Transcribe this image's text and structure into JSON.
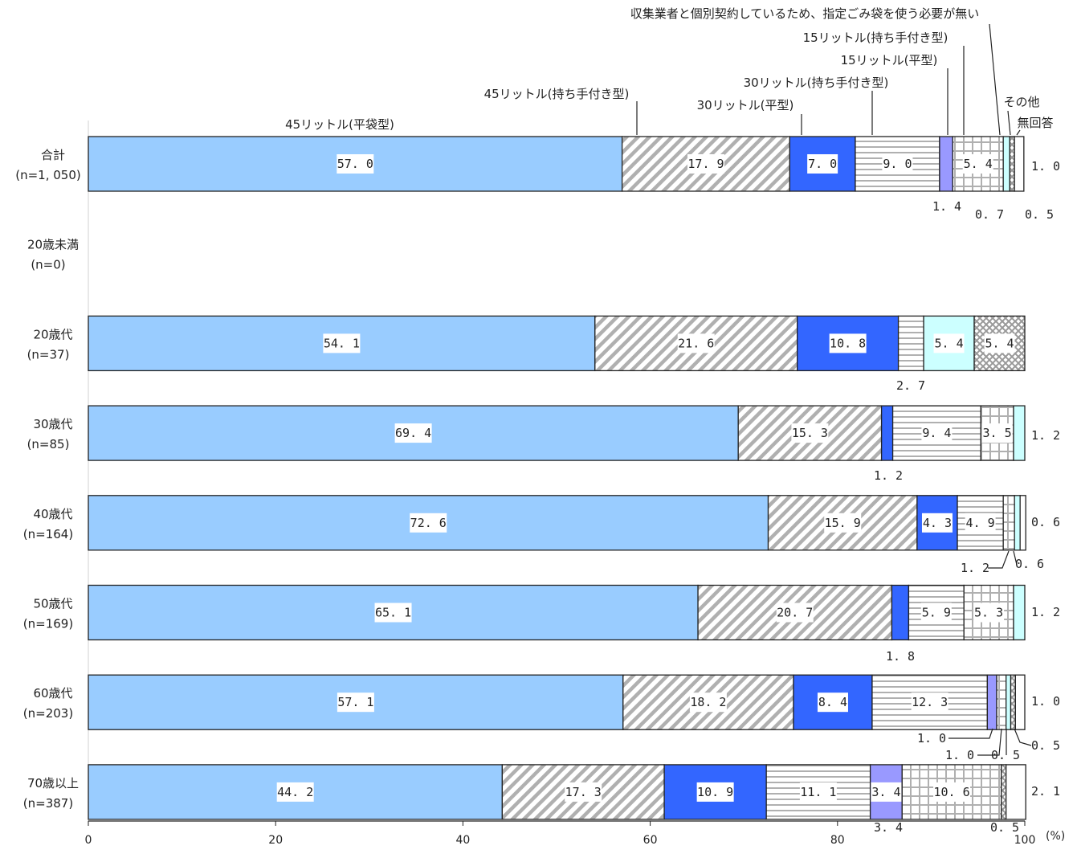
{
  "chart_data": {
    "type": "bar",
    "orientation": "horizontal",
    "stacked": true,
    "unit": "(%)",
    "xlim": [
      0,
      100
    ],
    "xticks": [
      0,
      20,
      40,
      60,
      80,
      100
    ],
    "grid": false,
    "categories": [
      {
        "name": "合計",
        "n": "(n=1, 050)"
      },
      {
        "name": "20歳未満",
        "n": "(n=0)"
      },
      {
        "name": "20歳代",
        "n": "(n=37)"
      },
      {
        "name": "30歳代",
        "n": "(n=85)"
      },
      {
        "name": "40歳代",
        "n": "(n=164)"
      },
      {
        "name": "50歳代",
        "n": "(n=169)"
      },
      {
        "name": "60歳代",
        "n": "(n=203)"
      },
      {
        "name": "70歳以上",
        "n": "(n=387)"
      }
    ],
    "series": [
      {
        "name": "45リットル(平袋型)",
        "color": "#99ccff",
        "pattern": "solid",
        "values": [
          57.0,
          null,
          54.1,
          69.4,
          72.6,
          65.1,
          57.1,
          44.2
        ],
        "labels": [
          "57.0",
          "",
          "54.1",
          "69.4",
          "72.6",
          "65.1",
          "57.1",
          "44.2"
        ]
      },
      {
        "name": "45リットル(持ち手付き型)",
        "color": "#b0b0b0",
        "pattern": "diagonal",
        "values": [
          17.9,
          null,
          21.6,
          15.3,
          15.9,
          20.7,
          18.2,
          17.3
        ],
        "labels": [
          "17.9",
          "",
          "21.6",
          "15.3",
          "15.9",
          "20.7",
          "18.2",
          "17.3"
        ]
      },
      {
        "name": "30リットル(平型)",
        "color": "#3366ff",
        "pattern": "solid",
        "values": [
          7.0,
          null,
          10.8,
          1.2,
          4.3,
          1.8,
          8.4,
          10.9
        ],
        "labels": [
          "7.0",
          "",
          "10.8",
          "1.2",
          "4.3",
          "1.8",
          "8.4",
          "10.9"
        ]
      },
      {
        "name": "30リットル(持ち手付き型)",
        "color": "#b0b0b0",
        "pattern": "horizontal",
        "values": [
          9.0,
          null,
          2.7,
          9.4,
          4.9,
          5.9,
          12.3,
          11.1
        ],
        "labels": [
          "9.0",
          "",
          "2.7",
          "9.4",
          "4.9",
          "5.9",
          "12.3",
          "11.1"
        ]
      },
      {
        "name": "15リットル(平型)",
        "color": "#9999ff",
        "pattern": "solid",
        "values": [
          1.4,
          null,
          0,
          0,
          0,
          0,
          1.0,
          3.4
        ],
        "labels": [
          "1.4",
          "",
          "",
          "",
          "",
          "",
          "1.0",
          "3.4"
        ]
      },
      {
        "name": "15リットル(持ち手付き型)",
        "color": "#b0b0b0",
        "pattern": "grid",
        "values": [
          5.4,
          null,
          0,
          3.5,
          1.2,
          5.3,
          1.0,
          10.6
        ],
        "labels": [
          "5.4",
          "",
          "",
          "3.5",
          "1.2",
          "5.3",
          "1.0",
          "10.6"
        ]
      },
      {
        "name": "収集業者と個別契約しているため、指定ごみ袋を使う必要が無い",
        "color": "#ccffff",
        "pattern": "solid",
        "values": [
          0.7,
          null,
          5.4,
          1.2,
          0.6,
          1.2,
          0.5,
          0
        ],
        "labels": [
          "0.7",
          "",
          "5.4",
          "1.2",
          "0.6",
          "1.2",
          "0.5",
          ""
        ]
      },
      {
        "name": "その他",
        "color": "#b0b0b0",
        "pattern": "crossdiag",
        "values": [
          0.5,
          null,
          5.4,
          0,
          0,
          0,
          0.5,
          0.5
        ],
        "labels": [
          "0.5",
          "",
          "5.4",
          "",
          "",
          "",
          "0.5",
          "0.5"
        ]
      },
      {
        "name": "無回答",
        "color": "#ffffff",
        "pattern": "solid",
        "values": [
          1.0,
          null,
          0,
          0,
          0.6,
          0,
          1.0,
          2.1
        ],
        "labels": [
          "1.0",
          "",
          "",
          "",
          "0.6",
          "",
          "1.0",
          "2.1"
        ]
      }
    ]
  }
}
